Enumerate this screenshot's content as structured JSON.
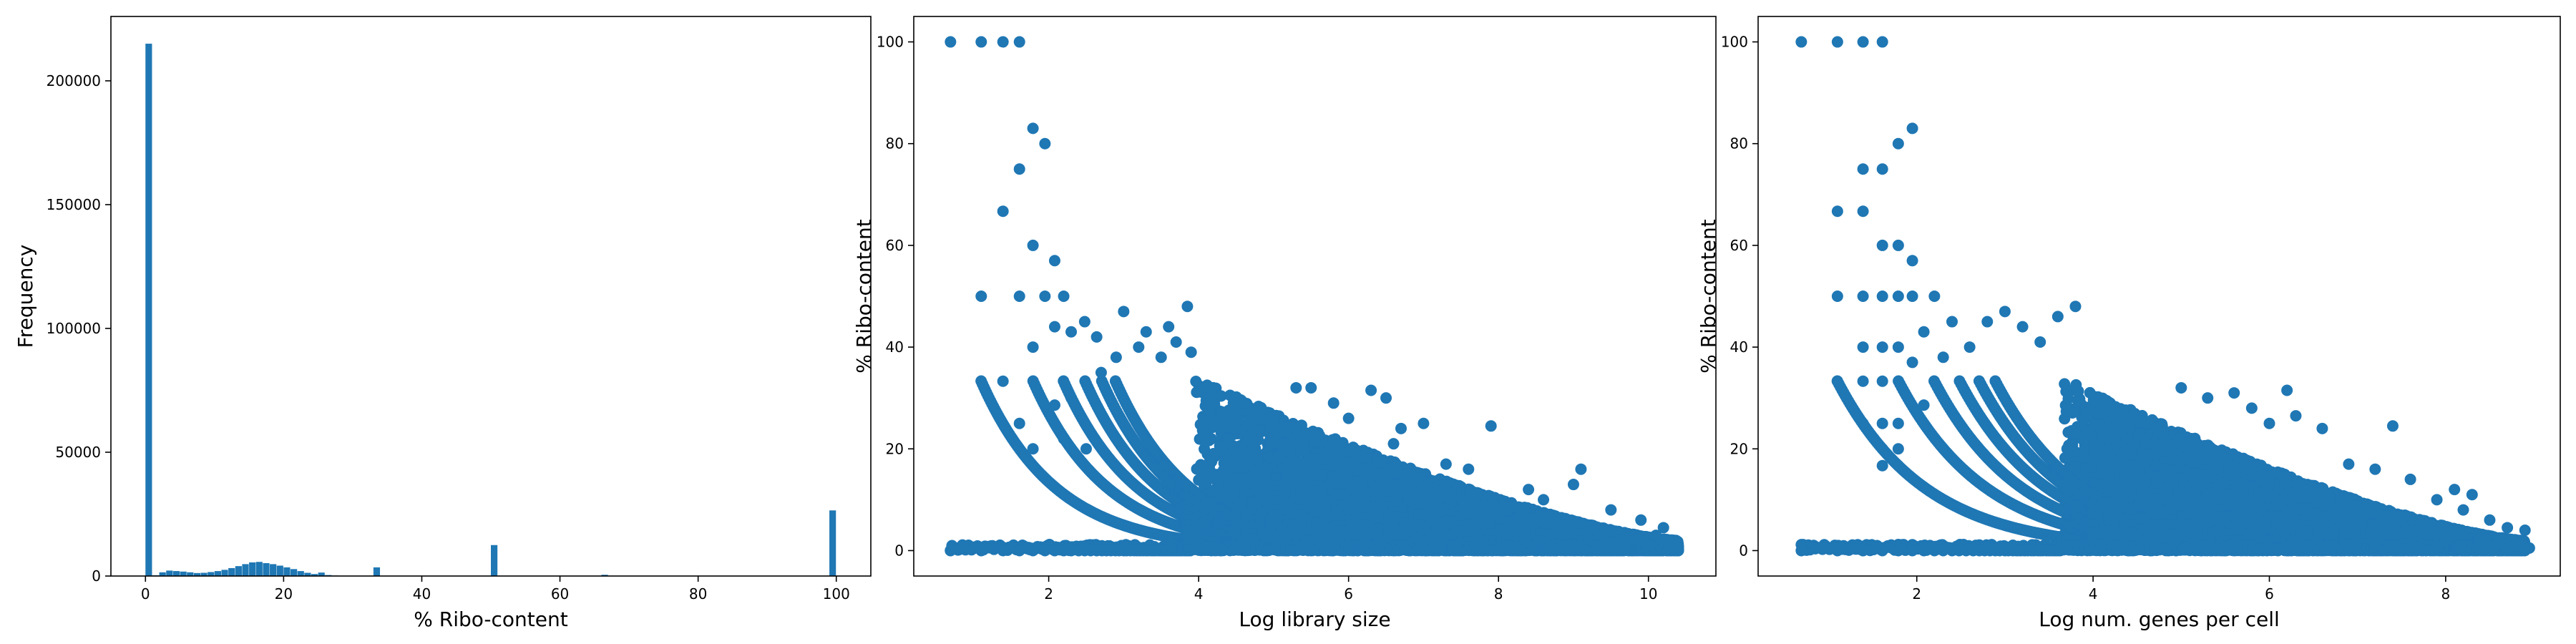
{
  "chart_data": [
    {
      "type": "histogram",
      "title": "",
      "xlabel": "% Ribo-content",
      "ylabel": "Frequency",
      "xlim": [
        -5,
        105
      ],
      "ylim": [
        0,
        226000
      ],
      "xticks": [
        0,
        20,
        40,
        60,
        80,
        100
      ],
      "yticks": [
        0,
        50000,
        100000,
        150000,
        200000
      ],
      "color": "#1f77b4",
      "bin_width": 1.0,
      "bins": [
        {
          "x": 0,
          "count": 215000
        },
        {
          "x": 1,
          "count": 300
        },
        {
          "x": 2,
          "count": 1500
        },
        {
          "x": 3,
          "count": 2200
        },
        {
          "x": 4,
          "count": 2000
        },
        {
          "x": 5,
          "count": 1800
        },
        {
          "x": 6,
          "count": 1500
        },
        {
          "x": 7,
          "count": 1200
        },
        {
          "x": 8,
          "count": 1300
        },
        {
          "x": 9,
          "count": 1600
        },
        {
          "x": 10,
          "count": 2000
        },
        {
          "x": 11,
          "count": 2500
        },
        {
          "x": 12,
          "count": 3200
        },
        {
          "x": 13,
          "count": 4000
        },
        {
          "x": 14,
          "count": 4800
        },
        {
          "x": 15,
          "count": 5500
        },
        {
          "x": 16,
          "count": 5700
        },
        {
          "x": 17,
          "count": 5200
        },
        {
          "x": 18,
          "count": 4800
        },
        {
          "x": 19,
          "count": 4200
        },
        {
          "x": 20,
          "count": 3500
        },
        {
          "x": 21,
          "count": 2800
        },
        {
          "x": 22,
          "count": 2000
        },
        {
          "x": 23,
          "count": 1300
        },
        {
          "x": 24,
          "count": 800
        },
        {
          "x": 25,
          "count": 1400
        },
        {
          "x": 26,
          "count": 400
        },
        {
          "x": 27,
          "count": 200
        },
        {
          "x": 28,
          "count": 100
        },
        {
          "x": 33,
          "count": 3500
        },
        {
          "x": 50,
          "count": 12500
        },
        {
          "x": 66,
          "count": 500
        },
        {
          "x": 99,
          "count": 26500
        }
      ]
    },
    {
      "type": "scatter",
      "title": "",
      "xlabel": "Log library size",
      "ylabel": "% Ribo-content",
      "xlim": [
        0.2,
        10.9
      ],
      "ylim": [
        -5,
        105
      ],
      "xticks": [
        2,
        4,
        6,
        8,
        10
      ],
      "yticks": [
        0,
        20,
        40,
        60,
        80,
        100
      ],
      "color": "#1f77b4",
      "cluster": {
        "x_peak": 4.2,
        "x_max": 10.4,
        "y_top_at_peak": 34,
        "y_top_at_max": 2
      },
      "points": [
        [
          0.69,
          100
        ],
        [
          1.1,
          100
        ],
        [
          1.39,
          100
        ],
        [
          1.61,
          100
        ],
        [
          1.79,
          83
        ],
        [
          1.95,
          80
        ],
        [
          1.61,
          75
        ],
        [
          1.39,
          66.7
        ],
        [
          1.79,
          60
        ],
        [
          2.08,
          57
        ],
        [
          1.1,
          50
        ],
        [
          1.61,
          50
        ],
        [
          1.95,
          50
        ],
        [
          2.2,
          50
        ],
        [
          2.48,
          45
        ],
        [
          2.3,
          43
        ],
        [
          1.39,
          33.3
        ],
        [
          1.79,
          40
        ],
        [
          2.08,
          44
        ],
        [
          2.64,
          42
        ],
        [
          3.0,
          47
        ],
        [
          3.3,
          43
        ],
        [
          3.6,
          44
        ],
        [
          3.85,
          48
        ],
        [
          1.61,
          25
        ],
        [
          1.79,
          20
        ],
        [
          2.08,
          28.6
        ],
        [
          2.3,
          30
        ],
        [
          2.2,
          22
        ],
        [
          2.5,
          20
        ],
        [
          2.7,
          35
        ],
        [
          2.9,
          38
        ],
        [
          3.2,
          40
        ],
        [
          3.5,
          38
        ],
        [
          3.7,
          41
        ],
        [
          3.9,
          39
        ],
        [
          0.69,
          0
        ],
        [
          1.1,
          0
        ],
        [
          1.39,
          0
        ],
        [
          1.61,
          0
        ],
        [
          1.79,
          0
        ],
        [
          1.95,
          0
        ],
        [
          2.08,
          0
        ],
        [
          2.2,
          0
        ],
        [
          2.3,
          0
        ],
        [
          2.4,
          0
        ],
        [
          2.48,
          0
        ],
        [
          2.56,
          0
        ],
        [
          2.64,
          0
        ],
        [
          2.71,
          0
        ],
        [
          2.77,
          0
        ],
        [
          2.83,
          0
        ],
        [
          2.89,
          0
        ],
        [
          2.94,
          0
        ],
        [
          3.0,
          0
        ],
        [
          3.04,
          0
        ],
        [
          3.09,
          0
        ],
        [
          3.14,
          0
        ],
        [
          3.18,
          0
        ],
        [
          3.22,
          0
        ],
        [
          3.26,
          0
        ],
        [
          3.3,
          0
        ],
        [
          3.33,
          0
        ],
        [
          3.37,
          0
        ],
        [
          3.4,
          0
        ],
        [
          3.43,
          0
        ],
        [
          3.47,
          0
        ],
        [
          3.5,
          0
        ],
        [
          3.53,
          0
        ],
        [
          3.56,
          0
        ],
        [
          3.58,
          0
        ],
        [
          3.61,
          0
        ],
        [
          3.64,
          0
        ],
        [
          3.66,
          0
        ],
        [
          3.69,
          0
        ],
        [
          3.71,
          0
        ],
        [
          3.74,
          0
        ],
        [
          3.76,
          0
        ],
        [
          3.78,
          0
        ],
        [
          3.81,
          0
        ],
        [
          3.83,
          0
        ],
        [
          3.85,
          0
        ],
        [
          3.87,
          0
        ],
        [
          3.89,
          0
        ],
        [
          5.3,
          32
        ],
        [
          5.5,
          32
        ],
        [
          6.3,
          31.5
        ],
        [
          6.5,
          30
        ],
        [
          5.8,
          29
        ],
        [
          6.0,
          26
        ],
        [
          6.7,
          24
        ],
        [
          7.0,
          25
        ],
        [
          6.6,
          21
        ],
        [
          7.3,
          17
        ],
        [
          7.6,
          16
        ],
        [
          7.9,
          24.5
        ],
        [
          8.4,
          12
        ],
        [
          8.6,
          10
        ],
        [
          9.1,
          16
        ],
        [
          9.0,
          13
        ],
        [
          9.5,
          8
        ],
        [
          9.9,
          6
        ],
        [
          10.2,
          4.5
        ],
        [
          10.1,
          3
        ],
        [
          10.35,
          1.5
        ],
        [
          10.3,
          0.5
        ],
        [
          10.0,
          1
        ],
        [
          9.7,
          2
        ]
      ]
    },
    {
      "type": "scatter",
      "title": "",
      "xlabel": "Log num. genes per cell",
      "ylabel": "% Ribo-content",
      "xlim": [
        0.2,
        9.3
      ],
      "ylim": [
        -5,
        105
      ],
      "xticks": [
        2,
        4,
        6,
        8
      ],
      "yticks": [
        0,
        20,
        40,
        60,
        80,
        100
      ],
      "color": "#1f77b4",
      "cluster": {
        "x_peak": 3.9,
        "x_max": 8.9,
        "y_top_at_peak": 34,
        "y_top_at_max": 2
      },
      "points": [
        [
          0.69,
          100
        ],
        [
          1.1,
          100
        ],
        [
          1.39,
          100
        ],
        [
          1.61,
          100
        ],
        [
          1.95,
          83
        ],
        [
          1.79,
          80
        ],
        [
          1.39,
          75
        ],
        [
          1.61,
          75
        ],
        [
          1.1,
          66.7
        ],
        [
          1.39,
          66.7
        ],
        [
          1.61,
          60
        ],
        [
          1.79,
          60
        ],
        [
          1.95,
          57
        ],
        [
          1.1,
          50
        ],
        [
          1.39,
          50
        ],
        [
          1.61,
          50
        ],
        [
          1.79,
          50
        ],
        [
          1.95,
          50
        ],
        [
          2.2,
          50
        ],
        [
          2.4,
          45
        ],
        [
          1.39,
          40
        ],
        [
          1.61,
          40
        ],
        [
          1.79,
          40
        ],
        [
          2.08,
          43
        ],
        [
          1.1,
          33.3
        ],
        [
          1.39,
          33.3
        ],
        [
          1.61,
          33.3
        ],
        [
          1.95,
          37
        ],
        [
          2.3,
          38
        ],
        [
          2.6,
          40
        ],
        [
          2.8,
          45
        ],
        [
          3.0,
          47
        ],
        [
          3.2,
          44
        ],
        [
          3.4,
          41
        ],
        [
          3.6,
          46
        ],
        [
          3.8,
          48
        ],
        [
          1.39,
          25
        ],
        [
          1.61,
          25
        ],
        [
          1.79,
          25
        ],
        [
          2.08,
          28.6
        ],
        [
          1.61,
          20
        ],
        [
          1.79,
          20
        ],
        [
          1.61,
          16.7
        ],
        [
          1.79,
          16.7
        ],
        [
          0.69,
          0
        ],
        [
          1.1,
          0
        ],
        [
          1.39,
          0
        ],
        [
          1.61,
          0
        ],
        [
          1.79,
          0
        ],
        [
          1.95,
          0
        ],
        [
          2.08,
          0
        ],
        [
          2.2,
          0
        ],
        [
          2.3,
          0
        ],
        [
          2.4,
          0
        ],
        [
          2.48,
          0
        ],
        [
          2.56,
          0
        ],
        [
          2.64,
          0
        ],
        [
          2.71,
          0
        ],
        [
          2.77,
          0
        ],
        [
          2.83,
          0
        ],
        [
          2.89,
          0
        ],
        [
          2.94,
          0
        ],
        [
          3.0,
          0
        ],
        [
          3.04,
          0
        ],
        [
          3.09,
          0
        ],
        [
          3.14,
          0
        ],
        [
          3.18,
          0
        ],
        [
          3.22,
          0
        ],
        [
          3.26,
          0
        ],
        [
          3.3,
          0
        ],
        [
          3.33,
          0
        ],
        [
          3.37,
          0
        ],
        [
          3.4,
          0
        ],
        [
          3.43,
          0
        ],
        [
          3.47,
          0
        ],
        [
          3.5,
          0
        ],
        [
          3.53,
          0
        ],
        [
          3.56,
          0
        ],
        [
          3.58,
          0
        ],
        [
          3.61,
          0
        ],
        [
          5.0,
          32
        ],
        [
          5.3,
          30
        ],
        [
          5.6,
          31
        ],
        [
          6.2,
          31.5
        ],
        [
          5.8,
          28
        ],
        [
          6.0,
          25
        ],
        [
          6.3,
          26.5
        ],
        [
          6.6,
          24
        ],
        [
          7.4,
          24.5
        ],
        [
          6.9,
          17
        ],
        [
          7.2,
          16
        ],
        [
          7.6,
          14
        ],
        [
          7.9,
          10
        ],
        [
          8.1,
          12
        ],
        [
          8.3,
          11
        ],
        [
          8.2,
          8
        ],
        [
          8.5,
          6
        ],
        [
          8.7,
          4.5
        ],
        [
          8.9,
          4
        ],
        [
          8.85,
          2
        ],
        [
          8.8,
          1
        ],
        [
          8.6,
          1.5
        ],
        [
          8.4,
          2
        ],
        [
          8.95,
          0.5
        ]
      ]
    }
  ]
}
